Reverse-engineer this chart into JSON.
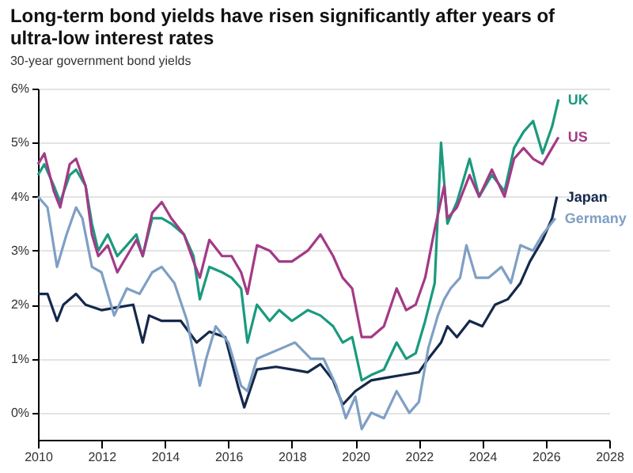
{
  "chart_data": {
    "type": "line",
    "title": "Long-term bond yields have risen significantly after years of ultra-low interest rates",
    "subtitle": "30-year government bond yields",
    "xlim": [
      2010,
      2028
    ],
    "xticks": [
      2010,
      2012,
      2014,
      2016,
      2018,
      2020,
      2022,
      2024,
      2026,
      2028
    ],
    "ylim": [
      -0.5,
      6
    ],
    "yticks": [
      {
        "value": 0,
        "label": "0%"
      },
      {
        "value": 1,
        "label": "1%"
      },
      {
        "value": 2,
        "label": "2%"
      },
      {
        "value": 3,
        "label": "3%"
      },
      {
        "value": 4,
        "label": "4%"
      },
      {
        "value": 5,
        "label": "5%"
      },
      {
        "value": 6,
        "label": "6%"
      }
    ],
    "grid": "y",
    "legend": false,
    "line_style": "solid",
    "series": [
      {
        "name": "UK",
        "color": "#1a9a7e",
        "x": [
          2010,
          2010.2,
          2010.5,
          2010.7,
          2011,
          2011.2,
          2011.5,
          2011.7,
          2011.9,
          2012.2,
          2012.5,
          2012.8,
          2013.1,
          2013.3,
          2013.6,
          2013.9,
          2014.2,
          2014.6,
          2014.9,
          2015.1,
          2015.4,
          2015.8,
          2016.1,
          2016.4,
          2016.6,
          2016.9,
          2017.3,
          2017.6,
          2018,
          2018.5,
          2018.9,
          2019.3,
          2019.6,
          2019.9,
          2020.2,
          2020.5,
          2020.9,
          2021.3,
          2021.6,
          2021.9,
          2022.2,
          2022.5,
          2022.7,
          2022.9,
          2023.2,
          2023.6,
          2023.9,
          2024.3,
          2024.7,
          2025,
          2025.3,
          2025.6,
          2025.9,
          2026.2,
          2026.4
        ],
        "values": [
          4.4,
          4.6,
          4.2,
          3.9,
          4.4,
          4.5,
          4.2,
          3.5,
          3.0,
          3.3,
          2.9,
          3.1,
          3.3,
          2.9,
          3.6,
          3.6,
          3.5,
          3.3,
          2.9,
          2.1,
          2.7,
          2.6,
          2.5,
          2.3,
          1.3,
          2.0,
          1.7,
          1.9,
          1.7,
          1.9,
          1.8,
          1.6,
          1.3,
          1.4,
          0.6,
          0.7,
          0.8,
          1.3,
          1.0,
          1.1,
          1.7,
          2.4,
          5.0,
          3.5,
          3.9,
          4.7,
          4.0,
          4.4,
          4.1,
          4.9,
          5.2,
          5.4,
          4.8,
          5.3,
          5.8
        ]
      },
      {
        "name": "US",
        "color": "#a33a87",
        "x": [
          2010,
          2010.2,
          2010.5,
          2010.7,
          2011,
          2011.2,
          2011.5,
          2011.7,
          2011.9,
          2012.2,
          2012.5,
          2012.8,
          2013.1,
          2013.3,
          2013.6,
          2013.9,
          2014.2,
          2014.6,
          2014.9,
          2015.1,
          2015.4,
          2015.8,
          2016.1,
          2016.4,
          2016.6,
          2016.9,
          2017.3,
          2017.6,
          2018,
          2018.5,
          2018.9,
          2019.3,
          2019.6,
          2019.9,
          2020.2,
          2020.5,
          2020.9,
          2021.3,
          2021.6,
          2021.9,
          2022.2,
          2022.5,
          2022.8,
          2022.9,
          2023.2,
          2023.6,
          2023.9,
          2024.3,
          2024.7,
          2025,
          2025.3,
          2025.6,
          2025.9,
          2026.2,
          2026.4
        ],
        "values": [
          4.6,
          4.8,
          4.1,
          3.8,
          4.6,
          4.7,
          4.2,
          3.3,
          2.9,
          3.1,
          2.6,
          2.9,
          3.2,
          2.9,
          3.7,
          3.9,
          3.6,
          3.3,
          2.8,
          2.5,
          3.2,
          2.9,
          2.9,
          2.6,
          2.2,
          3.1,
          3.0,
          2.8,
          2.8,
          3.0,
          3.3,
          2.9,
          2.5,
          2.3,
          1.4,
          1.4,
          1.6,
          2.3,
          1.9,
          2.0,
          2.5,
          3.4,
          4.2,
          3.6,
          3.8,
          4.4,
          4.0,
          4.5,
          4.0,
          4.7,
          4.9,
          4.7,
          4.6,
          4.9,
          5.1
        ]
      },
      {
        "name": "Japan",
        "color": "#14284b",
        "x": [
          2010,
          2010.3,
          2010.6,
          2010.8,
          2011.2,
          2011.5,
          2012,
          2012.5,
          2013,
          2013.3,
          2013.5,
          2013.9,
          2014.5,
          2015,
          2015.4,
          2015.9,
          2016.3,
          2016.5,
          2016.9,
          2017.5,
          2018,
          2018.5,
          2018.9,
          2019.3,
          2019.6,
          2020,
          2020.5,
          2021,
          2021.5,
          2022,
          2022.3,
          2022.7,
          2022.9,
          2023.2,
          2023.6,
          2024,
          2024.4,
          2024.8,
          2025.2,
          2025.5,
          2025.9,
          2026.2,
          2026.35
        ],
        "values": [
          2.2,
          2.2,
          1.7,
          2.0,
          2.2,
          2.0,
          1.9,
          1.95,
          2.0,
          1.3,
          1.8,
          1.7,
          1.7,
          1.3,
          1.5,
          1.4,
          0.5,
          0.1,
          0.8,
          0.85,
          0.8,
          0.75,
          0.9,
          0.6,
          0.15,
          0.4,
          0.6,
          0.65,
          0.7,
          0.75,
          1.0,
          1.3,
          1.6,
          1.4,
          1.7,
          1.6,
          2.0,
          2.1,
          2.4,
          2.8,
          3.2,
          3.6,
          4.0
        ]
      },
      {
        "name": "Germany",
        "color": "#7f9fc4",
        "x": [
          2010,
          2010.3,
          2010.6,
          2010.9,
          2011.2,
          2011.4,
          2011.7,
          2012,
          2012.4,
          2012.8,
          2013.2,
          2013.6,
          2013.9,
          2014.3,
          2014.7,
          2015.1,
          2015.3,
          2015.6,
          2016,
          2016.4,
          2016.6,
          2016.9,
          2017.3,
          2017.7,
          2018.1,
          2018.6,
          2019,
          2019.4,
          2019.7,
          2020,
          2020.2,
          2020.5,
          2020.9,
          2021.3,
          2021.7,
          2022,
          2022.3,
          2022.6,
          2022.8,
          2023,
          2023.3,
          2023.5,
          2023.8,
          2024.2,
          2024.6,
          2024.9,
          2025.2,
          2025.6,
          2025.9,
          2026.3
        ],
        "values": [
          4.0,
          3.8,
          2.7,
          3.3,
          3.8,
          3.6,
          2.7,
          2.6,
          1.8,
          2.3,
          2.2,
          2.6,
          2.7,
          2.4,
          1.7,
          0.5,
          1.0,
          1.6,
          1.3,
          0.5,
          0.4,
          1.0,
          1.1,
          1.2,
          1.3,
          1.0,
          1.0,
          0.5,
          -0.1,
          0.3,
          -0.3,
          0.0,
          -0.1,
          0.4,
          0.0,
          0.2,
          1.2,
          1.8,
          2.1,
          2.3,
          2.5,
          3.1,
          2.5,
          2.5,
          2.7,
          2.4,
          3.1,
          3.0,
          3.3,
          3.6
        ]
      }
    ]
  }
}
